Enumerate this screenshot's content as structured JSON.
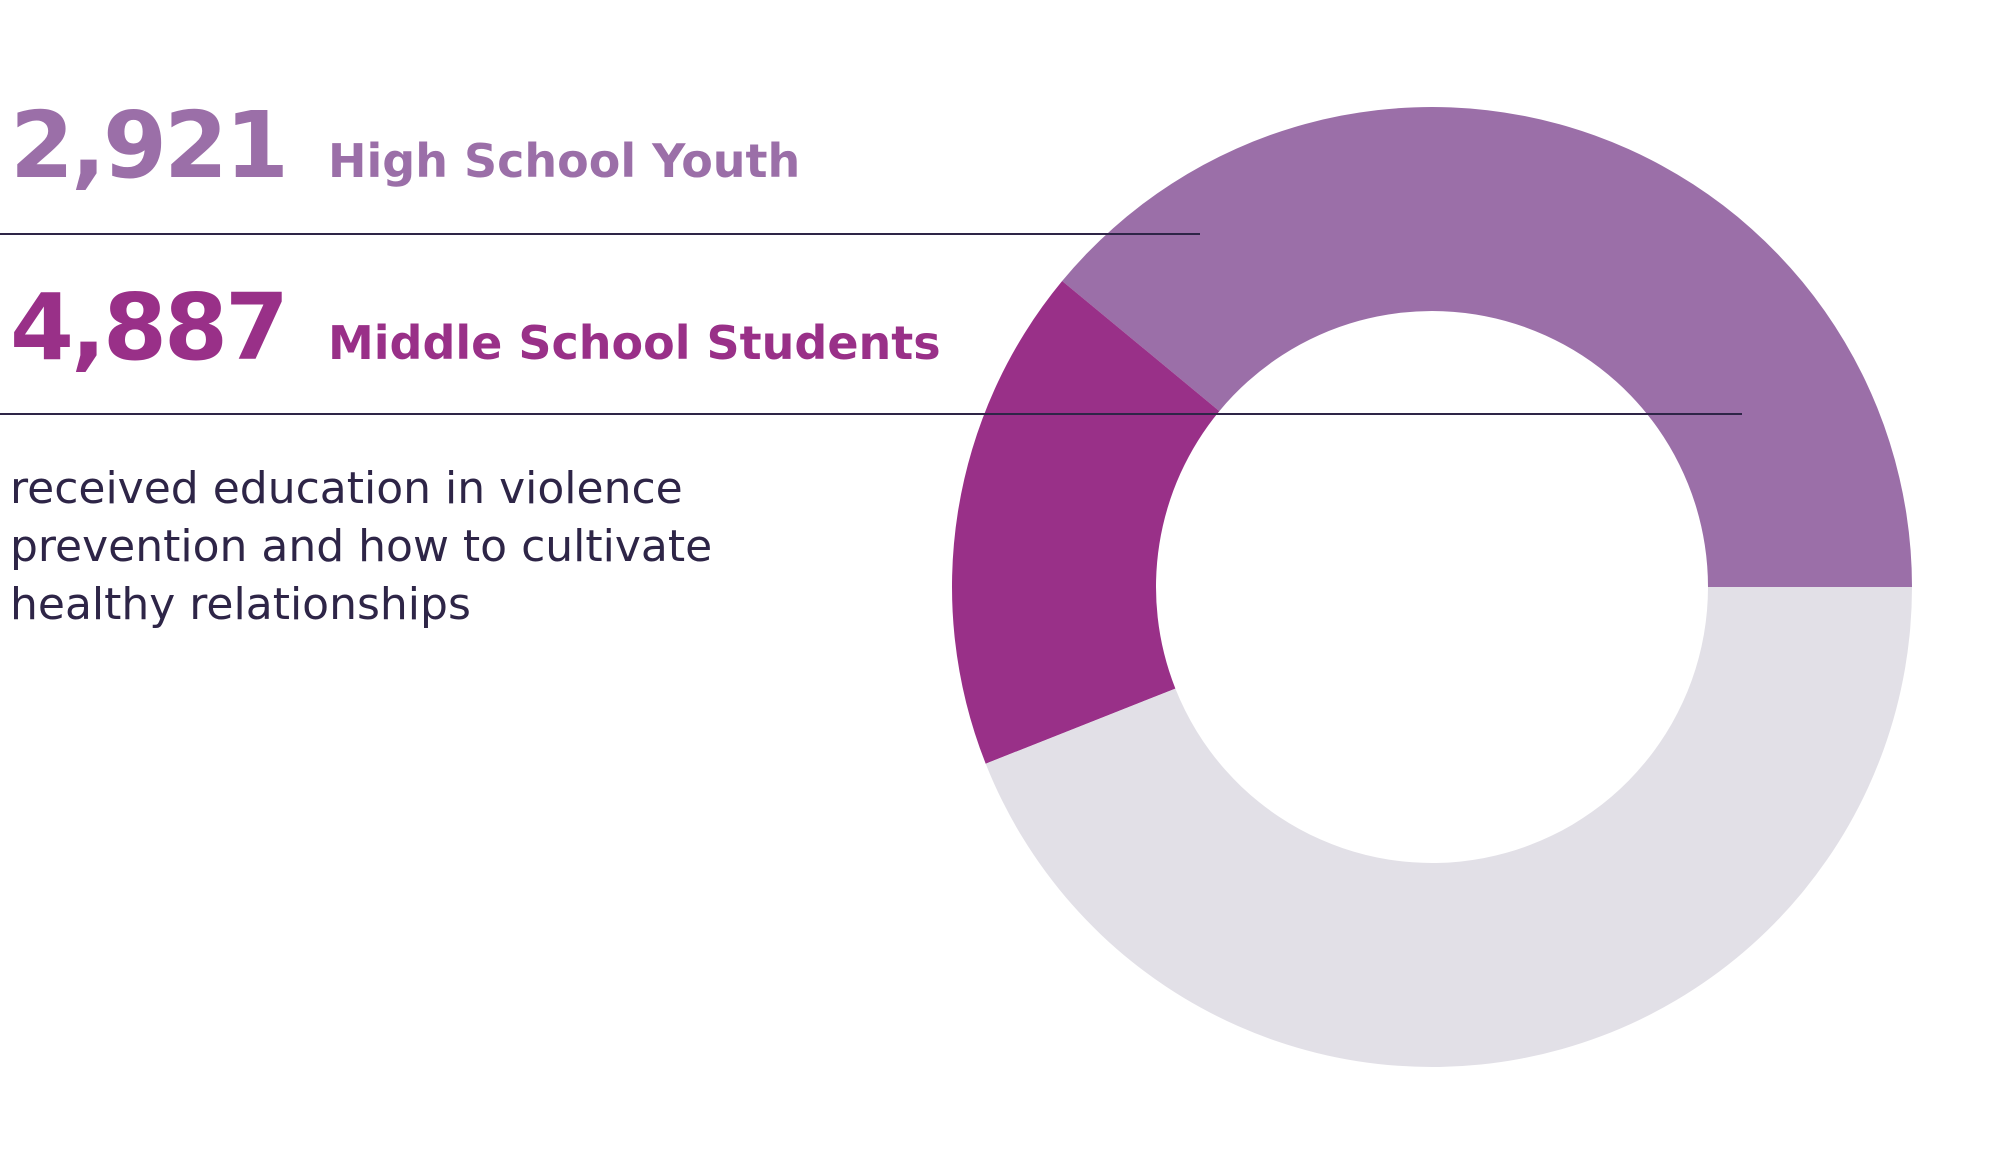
{
  "stats": [
    {
      "value": "2,921",
      "label": "High School Youth"
    },
    {
      "value": "4,887",
      "label": "Middle School Students"
    }
  ],
  "description": "received education in violence prevention and how to cultivate healthy relationships",
  "colors": {
    "high_school": "#9b6fa8",
    "middle_school": "#993088",
    "remainder": "#e2e0e7",
    "text_dark": "#2e2547",
    "divider": "#2e2547"
  },
  "chart_data": {
    "type": "pie",
    "donut": true,
    "start_angle_deg": 0,
    "direction": "counterclockwise",
    "slices": [
      {
        "value": 39,
        "color": "#9b6fa8"
      },
      {
        "value": 17,
        "color": "#993088"
      },
      {
        "value": 44,
        "color": "#e2e0e7"
      }
    ]
  }
}
